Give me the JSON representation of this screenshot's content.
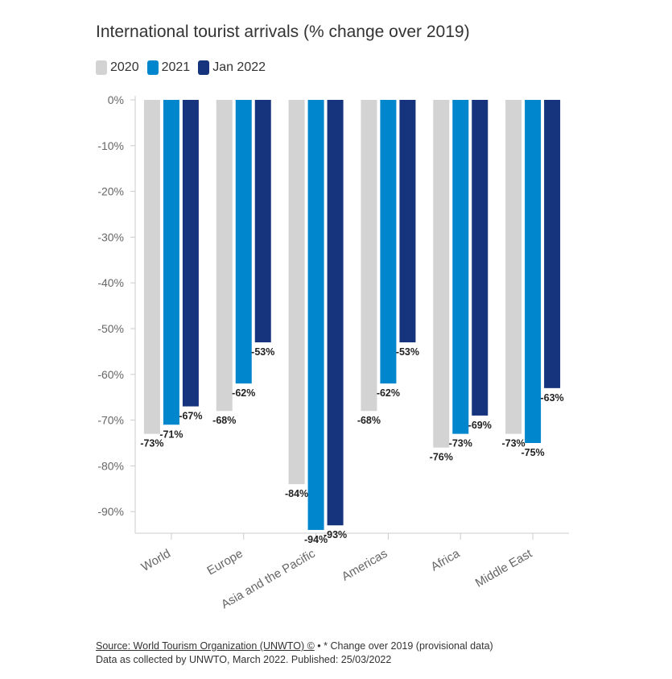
{
  "title": "International tourist arrivals (% change over 2019)",
  "footer": {
    "source": "Source: World Tourism Organization (UNWTO) ©",
    "note": "• * Change over 2019 (provisional data)",
    "line2": "Data as collected by UNWTO, March 2022. Published: 25/03/2022"
  },
  "chart_data": {
    "type": "bar",
    "title": "International tourist arrivals (% change over 2019)",
    "categories": [
      "World",
      "Europe",
      "Asia and the Pacific",
      "Americas",
      "Africa",
      "Middle East"
    ],
    "series": [
      {
        "name": "2020",
        "color": "#d3d3d3",
        "values": [
          -73,
          -68,
          -84,
          -68,
          -76,
          -73
        ]
      },
      {
        "name": "2021",
        "color": "#0086cc",
        "values": [
          -71,
          -62,
          -94,
          -62,
          -73,
          -75
        ]
      },
      {
        "name": "Jan 2022",
        "color": "#15347d",
        "values": [
          -67,
          -53,
          -93,
          -53,
          -69,
          -63
        ]
      }
    ],
    "y_ticks": [
      "0%",
      "-10%",
      "-20%",
      "-30%",
      "-40%",
      "-50%",
      "-60%",
      "-70%",
      "-80%",
      "-90%"
    ],
    "ylim": [
      -95,
      0
    ],
    "legend_position": "top-left",
    "grid": false
  }
}
